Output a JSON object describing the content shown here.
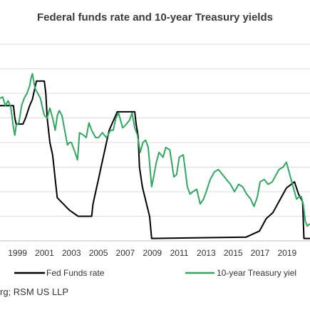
{
  "title": "Federal funds rate and 10-year Treasury yields",
  "source": "rg; RSM US LLP",
  "chart_data": {
    "type": "line",
    "title": "Federal funds rate and 10-year Treasury yields",
    "xlabel": "",
    "ylabel": "",
    "x_ticks": [
      "1999",
      "2001",
      "2003",
      "2005",
      "2007",
      "2009",
      "2011",
      "2013",
      "2015",
      "2017",
      "2019"
    ],
    "xlim": [
      1997.7,
      2020.7
    ],
    "ylim": [
      0,
      8
    ],
    "grid": "horizontal",
    "legend_position": "bottom",
    "series": [
      {
        "name": "Fed Funds rate",
        "color": "#000000",
        "x": [
          1997.7,
          1998.7,
          1998.8,
          1998.9,
          1999.4,
          1999.6,
          1999.9,
          2000.1,
          2000.2,
          2000.4,
          2000.99,
          2001.1,
          2001.2,
          2001.3,
          2001.4,
          2001.5,
          2001.6,
          2001.7,
          2001.8,
          2001.9,
          2001.95,
          2002.85,
          2003.5,
          2004.5,
          2004.6,
          2004.8,
          2005.0,
          2005.2,
          2005.4,
          2005.6,
          2005.8,
          2006.0,
          2006.2,
          2006.4,
          2006.5,
          2007.7,
          2007.8,
          2007.95,
          2008.05,
          2008.25,
          2008.35,
          2008.8,
          2008.95,
          2015.95,
          2016.95,
          2017.2,
          2017.45,
          2017.95,
          2018.2,
          2018.45,
          2018.7,
          2018.95,
          2019.55,
          2019.7,
          2019.85,
          2020.15,
          2020.25,
          2020.7
        ],
        "values": [
          5.5,
          5.5,
          5.0,
          4.75,
          4.75,
          5.0,
          5.5,
          5.75,
          6.0,
          6.5,
          6.5,
          6.0,
          5.0,
          4.5,
          4.0,
          3.75,
          3.5,
          3.0,
          2.5,
          2.0,
          1.75,
          1.25,
          1.0,
          1.0,
          1.5,
          2.0,
          2.5,
          3.0,
          3.5,
          4.0,
          4.5,
          4.75,
          5.0,
          5.25,
          5.25,
          5.25,
          4.75,
          4.25,
          3.0,
          2.25,
          2.0,
          1.0,
          0.1,
          0.15,
          0.4,
          0.65,
          0.9,
          1.15,
          1.4,
          1.65,
          1.9,
          2.15,
          2.4,
          2.15,
          1.9,
          1.6,
          0.1,
          0.1
        ]
      },
      {
        "name": "10-year Treasury yiel",
        "color": "#2ea85f",
        "x": [
          1997.7,
          1997.9,
          1998.1,
          1998.3,
          1998.5,
          1998.7,
          1998.8,
          1998.9,
          1999.1,
          1999.3,
          1999.5,
          1999.7,
          1999.9,
          2000.0,
          2000.1,
          2000.3,
          2000.5,
          2000.7,
          2000.9,
          2001.0,
          2001.2,
          2001.4,
          2001.6,
          2001.8,
          2001.95,
          2002.1,
          2002.3,
          2002.5,
          2002.7,
          2002.85,
          2003.0,
          2003.2,
          2003.45,
          2003.6,
          2003.9,
          2004.1,
          2004.3,
          2004.5,
          2004.8,
          2005.0,
          2005.3,
          2005.6,
          2005.9,
          2006.1,
          2006.3,
          2006.5,
          2006.8,
          2007.0,
          2007.3,
          2007.5,
          2007.7,
          2007.9,
          2008.1,
          2008.3,
          2008.5,
          2008.7,
          2008.95,
          2009.1,
          2009.3,
          2009.5,
          2009.8,
          2010.0,
          2010.3,
          2010.6,
          2010.8,
          2011.0,
          2011.3,
          2011.6,
          2011.8,
          2012.0,
          2012.3,
          2012.55,
          2012.8,
          2013.0,
          2013.3,
          2013.6,
          2013.9,
          2014.2,
          2014.5,
          2014.8,
          2015.1,
          2015.4,
          2015.7,
          2016.0,
          2016.3,
          2016.55,
          2016.8,
          2017.0,
          2017.3,
          2017.6,
          2017.9,
          2018.1,
          2018.4,
          2018.7,
          2018.95,
          2019.2,
          2019.5,
          2019.7,
          2019.9,
          2020.05,
          2020.2,
          2020.35,
          2020.5,
          2020.7
        ],
        "values": [
          5.8,
          5.85,
          5.5,
          5.7,
          5.45,
          4.6,
          4.3,
          4.7,
          4.8,
          5.5,
          5.8,
          6.0,
          6.3,
          6.6,
          6.8,
          6.2,
          6.0,
          5.8,
          5.3,
          5.1,
          5.0,
          5.4,
          5.0,
          4.5,
          5.1,
          5.3,
          5.1,
          4.5,
          3.9,
          4.0,
          4.0,
          3.7,
          3.3,
          4.4,
          4.3,
          4.2,
          4.8,
          4.5,
          4.2,
          4.2,
          4.4,
          4.2,
          4.5,
          4.5,
          5.0,
          5.2,
          4.6,
          4.7,
          4.9,
          5.2,
          4.6,
          4.3,
          3.6,
          4.0,
          4.1,
          3.8,
          2.2,
          2.6,
          3.2,
          3.6,
          3.4,
          3.8,
          3.7,
          2.6,
          2.7,
          3.4,
          3.5,
          2.2,
          1.9,
          2.0,
          2.1,
          1.5,
          1.7,
          2.0,
          2.5,
          2.8,
          2.9,
          2.7,
          2.5,
          2.3,
          2.0,
          2.3,
          2.2,
          1.9,
          1.7,
          1.4,
          1.8,
          2.4,
          2.5,
          2.3,
          2.4,
          2.6,
          2.9,
          3.0,
          3.2,
          2.7,
          2.1,
          1.7,
          1.8,
          1.8,
          1.5,
          0.8,
          0.6,
          0.7
        ]
      }
    ]
  }
}
